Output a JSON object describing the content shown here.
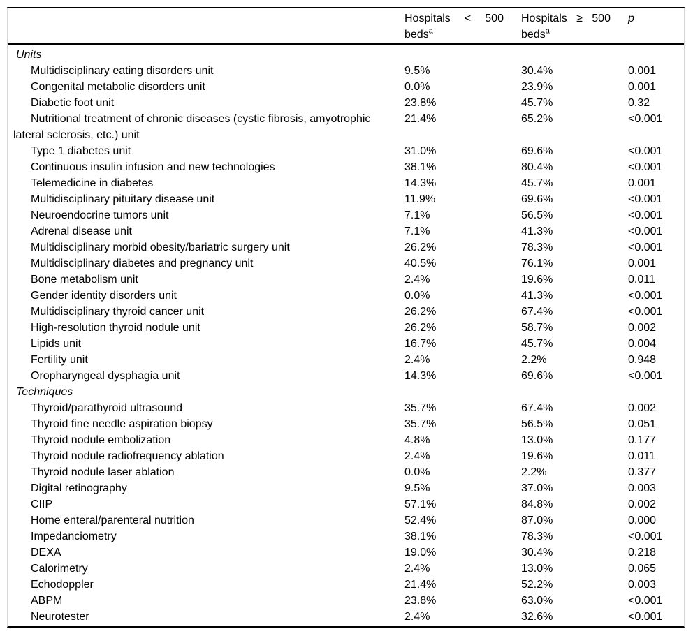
{
  "table": {
    "header": {
      "col_small": {
        "w1": "Hospitals",
        "w2": "<",
        "w3": "500",
        "line2": "beds",
        "superscript": "a"
      },
      "col_large": {
        "w1": "Hospitals",
        "w2": "≥",
        "w3": "500",
        "line2": "beds",
        "superscript": "a"
      },
      "p_label": "p"
    },
    "rows": [
      {
        "type": "section",
        "label": "Units"
      },
      {
        "type": "item",
        "label": "Multidisciplinary eating disorders unit",
        "lt500": "9.5%",
        "ge500": "30.4%",
        "p": "0.001"
      },
      {
        "type": "item",
        "label": "Congenital metabolic disorders unit",
        "lt500": "0.0%",
        "ge500": "23.9%",
        "p": "0.001"
      },
      {
        "type": "item",
        "label": "Diabetic foot unit",
        "lt500": "23.8%",
        "ge500": "45.7%",
        "p": "0.32"
      },
      {
        "type": "item",
        "label": "Nutritional treatment of chronic diseases (cystic fibrosis, amyotrophic lateral sclerosis, etc.) unit",
        "lt500": "21.4%",
        "ge500": "65.2%",
        "p": "<0.001"
      },
      {
        "type": "item",
        "label": "Type 1 diabetes unit",
        "lt500": "31.0%",
        "ge500": "69.6%",
        "p": "<0.001"
      },
      {
        "type": "item",
        "label": "Continuous insulin infusion and new technologies",
        "lt500": "38.1%",
        "ge500": "80.4%",
        "p": "<0.001"
      },
      {
        "type": "item",
        "label": "Telemedicine in diabetes",
        "lt500": "14.3%",
        "ge500": "45.7%",
        "p": "0.001"
      },
      {
        "type": "item",
        "label": "Multidisciplinary pituitary disease unit",
        "lt500": "11.9%",
        "ge500": "69.6%",
        "p": "<0.001"
      },
      {
        "type": "item",
        "label": "Neuroendocrine tumors unit",
        "lt500": "7.1%",
        "ge500": "56.5%",
        "p": "<0.001"
      },
      {
        "type": "item",
        "label": "Adrenal disease unit",
        "lt500": "7.1%",
        "ge500": "41.3%",
        "p": "<0.001"
      },
      {
        "type": "item",
        "label": "Multidisciplinary morbid obesity/bariatric surgery unit",
        "lt500": "26.2%",
        "ge500": "78.3%",
        "p": "<0.001"
      },
      {
        "type": "item",
        "label": "Multidisciplinary diabetes and pregnancy unit",
        "lt500": "40.5%",
        "ge500": "76.1%",
        "p": "0.001"
      },
      {
        "type": "item",
        "label": "Bone metabolism unit",
        "lt500": "2.4%",
        "ge500": "19.6%",
        "p": "0.011"
      },
      {
        "type": "item",
        "label": "Gender identity disorders unit",
        "lt500": "0.0%",
        "ge500": "41.3%",
        "p": "<0.001"
      },
      {
        "type": "item",
        "label": "Multidisciplinary thyroid cancer unit",
        "lt500": "26.2%",
        "ge500": "67.4%",
        "p": "<0.001"
      },
      {
        "type": "item",
        "label": "High-resolution thyroid nodule unit",
        "lt500": "26.2%",
        "ge500": "58.7%",
        "p": "0.002"
      },
      {
        "type": "item",
        "label": "Lipids unit",
        "lt500": "16.7%",
        "ge500": "45.7%",
        "p": "0.004"
      },
      {
        "type": "item",
        "label": "Fertility unit",
        "lt500": "2.4%",
        "ge500": "2.2%",
        "p": "0.948"
      },
      {
        "type": "item",
        "label": "Oropharyngeal dysphagia unit",
        "lt500": "14.3%",
        "ge500": "69.6%",
        "p": "<0.001"
      },
      {
        "type": "section",
        "label": "Techniques"
      },
      {
        "type": "item",
        "label": "Thyroid/parathyroid ultrasound",
        "lt500": "35.7%",
        "ge500": "67.4%",
        "p": "0.002"
      },
      {
        "type": "item",
        "label": "Thyroid fine needle aspiration biopsy",
        "lt500": "35.7%",
        "ge500": "56.5%",
        "p": "0.051"
      },
      {
        "type": "item",
        "label": "Thyroid nodule embolization",
        "lt500": "4.8%",
        "ge500": "13.0%",
        "p": "0.177"
      },
      {
        "type": "item",
        "label": "Thyroid nodule radiofrequency ablation",
        "lt500": "2.4%",
        "ge500": "19.6%",
        "p": "0.011"
      },
      {
        "type": "item",
        "label": "Thyroid nodule laser ablation",
        "lt500": "0.0%",
        "ge500": "2.2%",
        "p": "0.377"
      },
      {
        "type": "item",
        "label": "Digital retinography",
        "lt500": "9.5%",
        "ge500": "37.0%",
        "p": "0.003"
      },
      {
        "type": "item",
        "label": "CIIP",
        "lt500": "57.1%",
        "ge500": "84.8%",
        "p": "0.002"
      },
      {
        "type": "item",
        "label": "Home enteral/parenteral nutrition",
        "lt500": "52.4%",
        "ge500": "87.0%",
        "p": "0.000"
      },
      {
        "type": "item",
        "label": "Impedanciometry",
        "lt500": "38.1%",
        "ge500": "78.3%",
        "p": "<0.001"
      },
      {
        "type": "item",
        "label": "DEXA",
        "lt500": "19.0%",
        "ge500": "30.4%",
        "p": "0.218"
      },
      {
        "type": "item",
        "label": "Calorimetry",
        "lt500": "2.4%",
        "ge500": "13.0%",
        "p": "0.065"
      },
      {
        "type": "item",
        "label": "Echodoppler",
        "lt500": "21.4%",
        "ge500": "52.2%",
        "p": "0.003"
      },
      {
        "type": "item",
        "label": "ABPM",
        "lt500": "23.8%",
        "ge500": "63.0%",
        "p": "<0.001"
      },
      {
        "type": "item",
        "label": "Neurotester",
        "lt500": "2.4%",
        "ge500": "32.6%",
        "p": "<0.001"
      }
    ]
  }
}
